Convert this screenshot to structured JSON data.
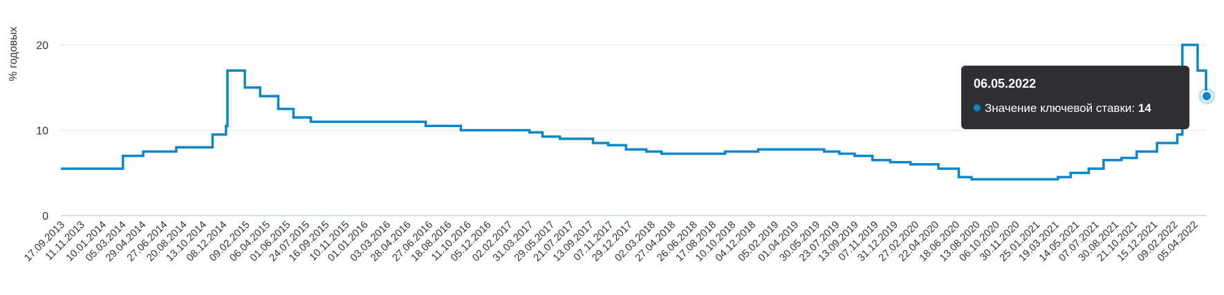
{
  "colors": {
    "series": "#0a87c8",
    "grid": "#e6e6e6",
    "axis": "#9cc6e0",
    "tooltip_bg": "#2f3033"
  },
  "chart_data": {
    "type": "line",
    "step": true,
    "ylabel": "% годовых",
    "ylim": [
      0,
      22
    ],
    "yticks": [
      "0",
      "10",
      "20"
    ],
    "grid": true,
    "xticks": [
      "17.09.2013",
      "11.11.2013",
      "10.01.2014",
      "05.03.2014",
      "29.04.2014",
      "27.06.2014",
      "20.08.2014",
      "13.10.2014",
      "08.12.2014",
      "09.02.2015",
      "06.04.2015",
      "01.06.2015",
      "24.07.2015",
      "16.09.2015",
      "10.11.2015",
      "01.01.2016",
      "03.03.2016",
      "28.04.2016",
      "27.06.2016",
      "18.08.2016",
      "11.10.2016",
      "05.12.2016",
      "02.02.2017",
      "31.03.2017",
      "29.05.2017",
      "21.07.2017",
      "13.09.2017",
      "07.11.2017",
      "29.12.2017",
      "02.03.2018",
      "27.04.2018",
      "26.06.2018",
      "17.08.2018",
      "10.10.2018",
      "04.12.2018",
      "05.02.2019",
      "01.04.2019",
      "30.05.2019",
      "23.07.2019",
      "13.09.2019",
      "07.11.2019",
      "31.12.2019",
      "27.02.2020",
      "22.04.2020",
      "18.06.2020",
      "13.08.2020",
      "06.10.2020",
      "30.11.2020",
      "25.01.2021",
      "19.03.2021",
      "14.05.2021",
      "07.07.2021",
      "30.08.2021",
      "21.10.2021",
      "15.12.2021",
      "09.02.2022",
      "05.04.2022"
    ],
    "series": [
      {
        "name": "Значение ключевой ставки",
        "points": [
          [
            "2013-09-13",
            5.5
          ],
          [
            "2014-03-03",
            7.0
          ],
          [
            "2014-04-28",
            7.5
          ],
          [
            "2014-07-28",
            8.0
          ],
          [
            "2014-11-05",
            9.5
          ],
          [
            "2014-12-12",
            10.5
          ],
          [
            "2014-12-16",
            17.0
          ],
          [
            "2015-02-02",
            15.0
          ],
          [
            "2015-03-16",
            14.0
          ],
          [
            "2015-05-05",
            12.5
          ],
          [
            "2015-06-16",
            11.5
          ],
          [
            "2015-08-03",
            11.0
          ],
          [
            "2016-06-14",
            10.5
          ],
          [
            "2016-09-19",
            10.0
          ],
          [
            "2017-03-27",
            9.75
          ],
          [
            "2017-05-02",
            9.25
          ],
          [
            "2017-06-19",
            9.0
          ],
          [
            "2017-09-18",
            8.5
          ],
          [
            "2017-10-30",
            8.25
          ],
          [
            "2017-12-18",
            7.75
          ],
          [
            "2018-02-12",
            7.5
          ],
          [
            "2018-03-26",
            7.25
          ],
          [
            "2018-09-17",
            7.5
          ],
          [
            "2018-12-17",
            7.75
          ],
          [
            "2019-06-17",
            7.5
          ],
          [
            "2019-07-29",
            7.25
          ],
          [
            "2019-09-09",
            7.0
          ],
          [
            "2019-10-28",
            6.5
          ],
          [
            "2019-12-16",
            6.25
          ],
          [
            "2020-02-10",
            6.0
          ],
          [
            "2020-04-27",
            5.5
          ],
          [
            "2020-06-22",
            4.5
          ],
          [
            "2020-07-27",
            4.25
          ],
          [
            "2021-03-22",
            4.5
          ],
          [
            "2021-04-26",
            5.0
          ],
          [
            "2021-06-15",
            5.5
          ],
          [
            "2021-07-26",
            6.5
          ],
          [
            "2021-09-13",
            6.75
          ],
          [
            "2021-10-25",
            7.5
          ],
          [
            "2021-12-20",
            8.5
          ],
          [
            "2022-02-14",
            9.5
          ],
          [
            "2022-02-28",
            20.0
          ],
          [
            "2022-04-11",
            17.0
          ],
          [
            "2022-05-04",
            14.0
          ],
          [
            "2022-05-06",
            14.0
          ]
        ]
      }
    ],
    "tooltip": {
      "date": "06.05.2022",
      "label": "Значение ключевой ставки:",
      "value": "14"
    }
  }
}
